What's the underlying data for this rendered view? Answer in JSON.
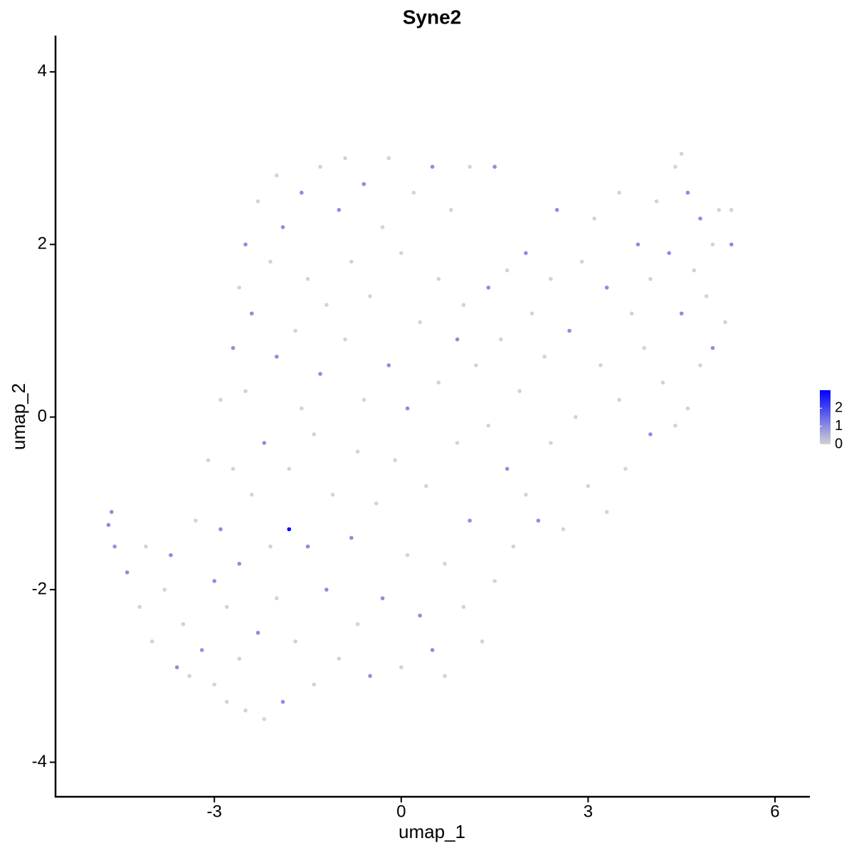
{
  "chart_data": {
    "type": "scatter",
    "title": "Syne2",
    "x_label": "umap_1",
    "y_label": "umap_2",
    "x": [
      -4.7,
      -4.65,
      -4.6,
      -4.4,
      -4.1,
      -4.2,
      -4.0,
      -3.8,
      -3.7,
      -3.6,
      -3.5,
      -3.4,
      -3.3,
      -3.2,
      -3.1,
      -3.0,
      -3.0,
      -2.9,
      -2.9,
      -2.8,
      -2.8,
      -2.7,
      -2.7,
      -2.6,
      -2.6,
      -2.6,
      -2.5,
      -2.5,
      -2.5,
      -2.4,
      -2.4,
      -2.3,
      -2.3,
      -2.2,
      -2.2,
      -2.1,
      -2.1,
      -2.0,
      -2.0,
      -2.0,
      -1.9,
      -1.9,
      -1.8,
      -1.8,
      -1.7,
      -1.7,
      -1.6,
      -1.6,
      -1.5,
      -1.5,
      -1.4,
      -1.4,
      -1.3,
      -1.3,
      -1.2,
      -1.2,
      -1.1,
      -1.0,
      -1.0,
      -0.9,
      -0.9,
      -0.8,
      -0.8,
      -0.7,
      -0.7,
      -0.6,
      -0.6,
      -0.5,
      -0.5,
      -0.4,
      -0.3,
      -0.3,
      -0.2,
      -0.2,
      -0.1,
      0.0,
      0.0,
      0.1,
      0.1,
      0.2,
      0.3,
      0.3,
      0.4,
      0.5,
      0.5,
      0.6,
      0.6,
      0.7,
      0.7,
      0.8,
      0.9,
      0.9,
      1.0,
      1.0,
      1.1,
      1.1,
      1.2,
      1.3,
      1.4,
      1.4,
      1.5,
      1.5,
      1.6,
      1.7,
      1.7,
      1.8,
      1.9,
      2.0,
      2.0,
      2.1,
      2.2,
      2.3,
      2.4,
      2.4,
      2.5,
      2.6,
      2.7,
      2.8,
      2.9,
      3.0,
      3.1,
      3.2,
      3.3,
      3.3,
      3.5,
      3.5,
      3.6,
      3.7,
      3.8,
      3.9,
      4.0,
      4.0,
      4.1,
      4.2,
      4.3,
      4.4,
      4.4,
      4.5,
      4.6,
      4.6,
      4.7,
      4.8,
      4.8,
      4.9,
      5.0,
      5.0,
      5.1,
      5.2,
      5.3,
      5.3,
      4.5
    ],
    "y": [
      -1.25,
      -1.1,
      -1.5,
      -1.8,
      -1.5,
      -2.2,
      -2.6,
      -2.0,
      -1.6,
      -2.9,
      -2.4,
      -3.0,
      -1.2,
      -2.7,
      -0.5,
      -1.9,
      -3.1,
      0.2,
      -1.3,
      -2.2,
      -3.3,
      0.8,
      -0.6,
      1.5,
      -1.7,
      -2.8,
      2.0,
      0.3,
      -3.4,
      1.2,
      -0.9,
      -2.5,
      2.5,
      -0.3,
      -3.5,
      1.8,
      -1.5,
      2.8,
      0.7,
      -2.1,
      -3.3,
      2.2,
      -1.3,
      -0.6,
      1.0,
      -2.6,
      2.6,
      0.1,
      -1.5,
      1.6,
      -3.1,
      -0.2,
      2.9,
      0.5,
      -2.0,
      1.3,
      -0.9,
      2.4,
      -2.8,
      3.0,
      0.9,
      -1.4,
      1.8,
      -0.4,
      -2.4,
      2.7,
      0.2,
      -3.0,
      1.4,
      -1.0,
      2.2,
      -2.1,
      0.6,
      3.0,
      -0.5,
      1.9,
      -2.9,
      -1.6,
      0.1,
      2.6,
      1.1,
      -2.3,
      -0.8,
      2.9,
      -2.7,
      0.4,
      1.6,
      -1.7,
      -3.0,
      2.4,
      0.9,
      -0.3,
      -2.2,
      1.3,
      2.9,
      -1.2,
      0.6,
      -2.6,
      1.5,
      -0.1,
      2.9,
      -1.9,
      0.9,
      -0.6,
      1.7,
      -1.5,
      0.3,
      1.9,
      -0.9,
      1.2,
      -1.2,
      0.7,
      1.6,
      -0.3,
      2.4,
      -1.3,
      1.0,
      0.0,
      1.8,
      -0.8,
      2.3,
      0.6,
      -1.1,
      1.5,
      2.6,
      0.2,
      -0.6,
      1.2,
      2.0,
      0.8,
      -0.2,
      1.6,
      2.5,
      0.4,
      1.9,
      -0.1,
      2.9,
      1.2,
      2.6,
      0.1,
      1.7,
      0.6,
      2.3,
      1.4,
      0.8,
      2.0,
      2.4,
      1.1,
      2.0,
      2.4,
      3.05
    ],
    "values": [
      1,
      1,
      0.9,
      1,
      0,
      0,
      0,
      0,
      1,
      1,
      0,
      0,
      0,
      0.9,
      0,
      1,
      0,
      0,
      1,
      0,
      0,
      1,
      0,
      0,
      1,
      0,
      1,
      0,
      0,
      1,
      0,
      1,
      0,
      1,
      0,
      0,
      0,
      0,
      1,
      0,
      1,
      1,
      3,
      0,
      0,
      0,
      1,
      0,
      1,
      0,
      0,
      0,
      0,
      1,
      1,
      0,
      0,
      1,
      0,
      0,
      0,
      1,
      0,
      0,
      0,
      1,
      0,
      1,
      0,
      0,
      0,
      1,
      1,
      0,
      0,
      0,
      0,
      0,
      1,
      0,
      0,
      1,
      0,
      1,
      1,
      0,
      0,
      0,
      0,
      0,
      1,
      0,
      0,
      0,
      0,
      1,
      0,
      0,
      1,
      0,
      1,
      0,
      0,
      1,
      0,
      0,
      0,
      1,
      0,
      0,
      1,
      0,
      0,
      0,
      1,
      0,
      1,
      0,
      0,
      0,
      0,
      0,
      0,
      1,
      0,
      0,
      0,
      0,
      1,
      0,
      1,
      0,
      0,
      0,
      1,
      0,
      0,
      1,
      1,
      0,
      0,
      0,
      1,
      0,
      1,
      0,
      0,
      0,
      1,
      0,
      0
    ],
    "xlim": [
      -5.55,
      6.56
    ],
    "ylim": [
      -4.4,
      4.42
    ],
    "xticks": [
      -3,
      0,
      3,
      6
    ],
    "yticks": [
      -4,
      -2,
      0,
      2,
      4
    ],
    "colorlim": [
      0,
      3
    ],
    "colorticks": [
      0,
      1,
      2
    ],
    "color_low": "#d3d3d3",
    "color_high": "#0000ff"
  }
}
